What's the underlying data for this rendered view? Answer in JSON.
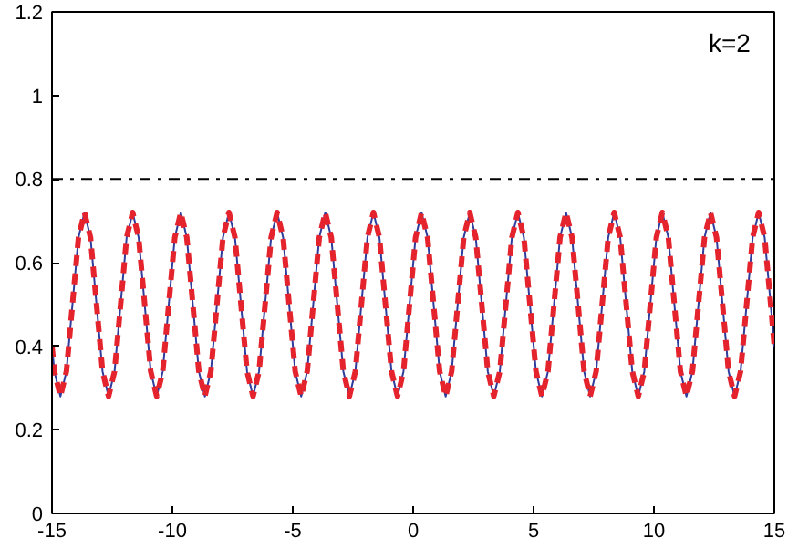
{
  "chart_data": {
    "type": "line",
    "annotations": [
      "k=2"
    ],
    "x": [
      -15,
      -14.9,
      -14.65,
      -14.4,
      -14.15,
      -13.9,
      -13.65,
      -13.4,
      -13.15,
      -12.9,
      -12.65,
      -12.4,
      -12.15,
      -11.9,
      -11.65,
      -11.4,
      -11.15,
      -10.9,
      -10.65,
      -10.4,
      -10.15,
      -9.9,
      -9.65,
      -9.4,
      -9.15,
      -8.9,
      -8.65,
      -8.4,
      -8.15,
      -7.9,
      -7.65,
      -7.4,
      -7.15,
      -6.9,
      -6.65,
      -6.4,
      -6.15,
      -5.9,
      -5.65,
      -5.4,
      -5.15,
      -4.9,
      -4.65,
      -4.4,
      -4.15,
      -3.9,
      -3.65,
      -3.4,
      -3.15,
      -2.9,
      -2.65,
      -2.4,
      -2.15,
      -1.9,
      -1.65,
      -1.4,
      -1.15,
      -0.9,
      -0.65,
      -0.4,
      -0.15,
      0.1,
      0.35,
      0.6,
      0.85,
      1.1,
      1.35,
      1.6,
      1.85,
      2.1,
      2.35,
      2.6,
      2.85,
      3.1,
      3.35,
      3.6,
      3.85,
      4.1,
      4.35,
      4.6,
      4.85,
      5.1,
      5.35,
      5.6,
      5.85,
      6.1,
      6.35,
      6.6,
      6.85,
      7.1,
      7.35,
      7.6,
      7.85,
      8.1,
      8.35,
      8.6,
      8.85,
      9.1,
      9.35,
      9.6,
      9.85,
      10.1,
      10.35,
      10.6,
      10.85,
      11.1,
      11.35,
      11.6,
      11.85,
      12.1,
      12.35,
      12.6,
      12.85,
      13.1,
      13.35,
      13.6,
      13.85,
      14.1,
      14.35,
      14.6,
      14.85,
      15
    ],
    "series": [
      {
        "color": "#2f3c9c",
        "line_style": "solid",
        "values": [
          0.4,
          0.34,
          0.28,
          0.34,
          0.5,
          0.66,
          0.72,
          0.66,
          0.5,
          0.34,
          0.28,
          0.34,
          0.5,
          0.66,
          0.72,
          0.66,
          0.5,
          0.34,
          0.28,
          0.34,
          0.5,
          0.66,
          0.72,
          0.66,
          0.5,
          0.34,
          0.28,
          0.34,
          0.5,
          0.66,
          0.72,
          0.66,
          0.5,
          0.34,
          0.28,
          0.34,
          0.5,
          0.66,
          0.72,
          0.66,
          0.5,
          0.34,
          0.28,
          0.34,
          0.5,
          0.66,
          0.72,
          0.66,
          0.5,
          0.34,
          0.28,
          0.34,
          0.5,
          0.66,
          0.72,
          0.66,
          0.5,
          0.34,
          0.28,
          0.34,
          0.5,
          0.66,
          0.72,
          0.66,
          0.5,
          0.34,
          0.28,
          0.34,
          0.5,
          0.66,
          0.72,
          0.66,
          0.5,
          0.34,
          0.28,
          0.34,
          0.5,
          0.66,
          0.72,
          0.66,
          0.5,
          0.34,
          0.28,
          0.34,
          0.5,
          0.66,
          0.72,
          0.66,
          0.5,
          0.34,
          0.28,
          0.34,
          0.5,
          0.66,
          0.72,
          0.66,
          0.5,
          0.34,
          0.28,
          0.34,
          0.5,
          0.66,
          0.72,
          0.66,
          0.5,
          0.34,
          0.28,
          0.34,
          0.5,
          0.66,
          0.72,
          0.66,
          0.5,
          0.34,
          0.28,
          0.34,
          0.5,
          0.66,
          0.72,
          0.66,
          0.5,
          0.4
        ]
      },
      {
        "color": "#e4232d",
        "line_style": "dashed",
        "values": [
          0.4,
          0.34,
          0.28,
          0.34,
          0.5,
          0.66,
          0.72,
          0.66,
          0.5,
          0.34,
          0.28,
          0.34,
          0.5,
          0.66,
          0.72,
          0.66,
          0.5,
          0.34,
          0.28,
          0.34,
          0.5,
          0.66,
          0.72,
          0.66,
          0.5,
          0.34,
          0.28,
          0.34,
          0.5,
          0.66,
          0.72,
          0.66,
          0.5,
          0.34,
          0.28,
          0.34,
          0.5,
          0.66,
          0.72,
          0.66,
          0.5,
          0.34,
          0.28,
          0.34,
          0.5,
          0.66,
          0.72,
          0.66,
          0.5,
          0.34,
          0.28,
          0.34,
          0.5,
          0.66,
          0.72,
          0.66,
          0.5,
          0.34,
          0.28,
          0.34,
          0.5,
          0.66,
          0.72,
          0.66,
          0.5,
          0.34,
          0.28,
          0.34,
          0.5,
          0.66,
          0.72,
          0.66,
          0.5,
          0.34,
          0.28,
          0.34,
          0.5,
          0.66,
          0.72,
          0.66,
          0.5,
          0.34,
          0.28,
          0.34,
          0.5,
          0.66,
          0.72,
          0.66,
          0.5,
          0.34,
          0.28,
          0.34,
          0.5,
          0.66,
          0.72,
          0.66,
          0.5,
          0.34,
          0.28,
          0.34,
          0.5,
          0.66,
          0.72,
          0.66,
          0.5,
          0.34,
          0.28,
          0.34,
          0.5,
          0.66,
          0.72,
          0.66,
          0.5,
          0.34,
          0.28,
          0.34,
          0.5,
          0.66,
          0.72,
          0.66,
          0.5,
          0.4
        ]
      }
    ],
    "ref_lines": [
      {
        "axis": "y",
        "value": 0.8,
        "color": "#000000",
        "line_style": "dashdot"
      }
    ],
    "xlim": [
      -15,
      15
    ],
    "ylim": [
      0,
      1.2
    ],
    "xticks": [
      -15,
      -10,
      -5,
      0,
      5,
      10,
      15
    ],
    "yticks": [
      0,
      0.2,
      0.4,
      0.6,
      0.8,
      1,
      1.2
    ],
    "grid": false
  }
}
